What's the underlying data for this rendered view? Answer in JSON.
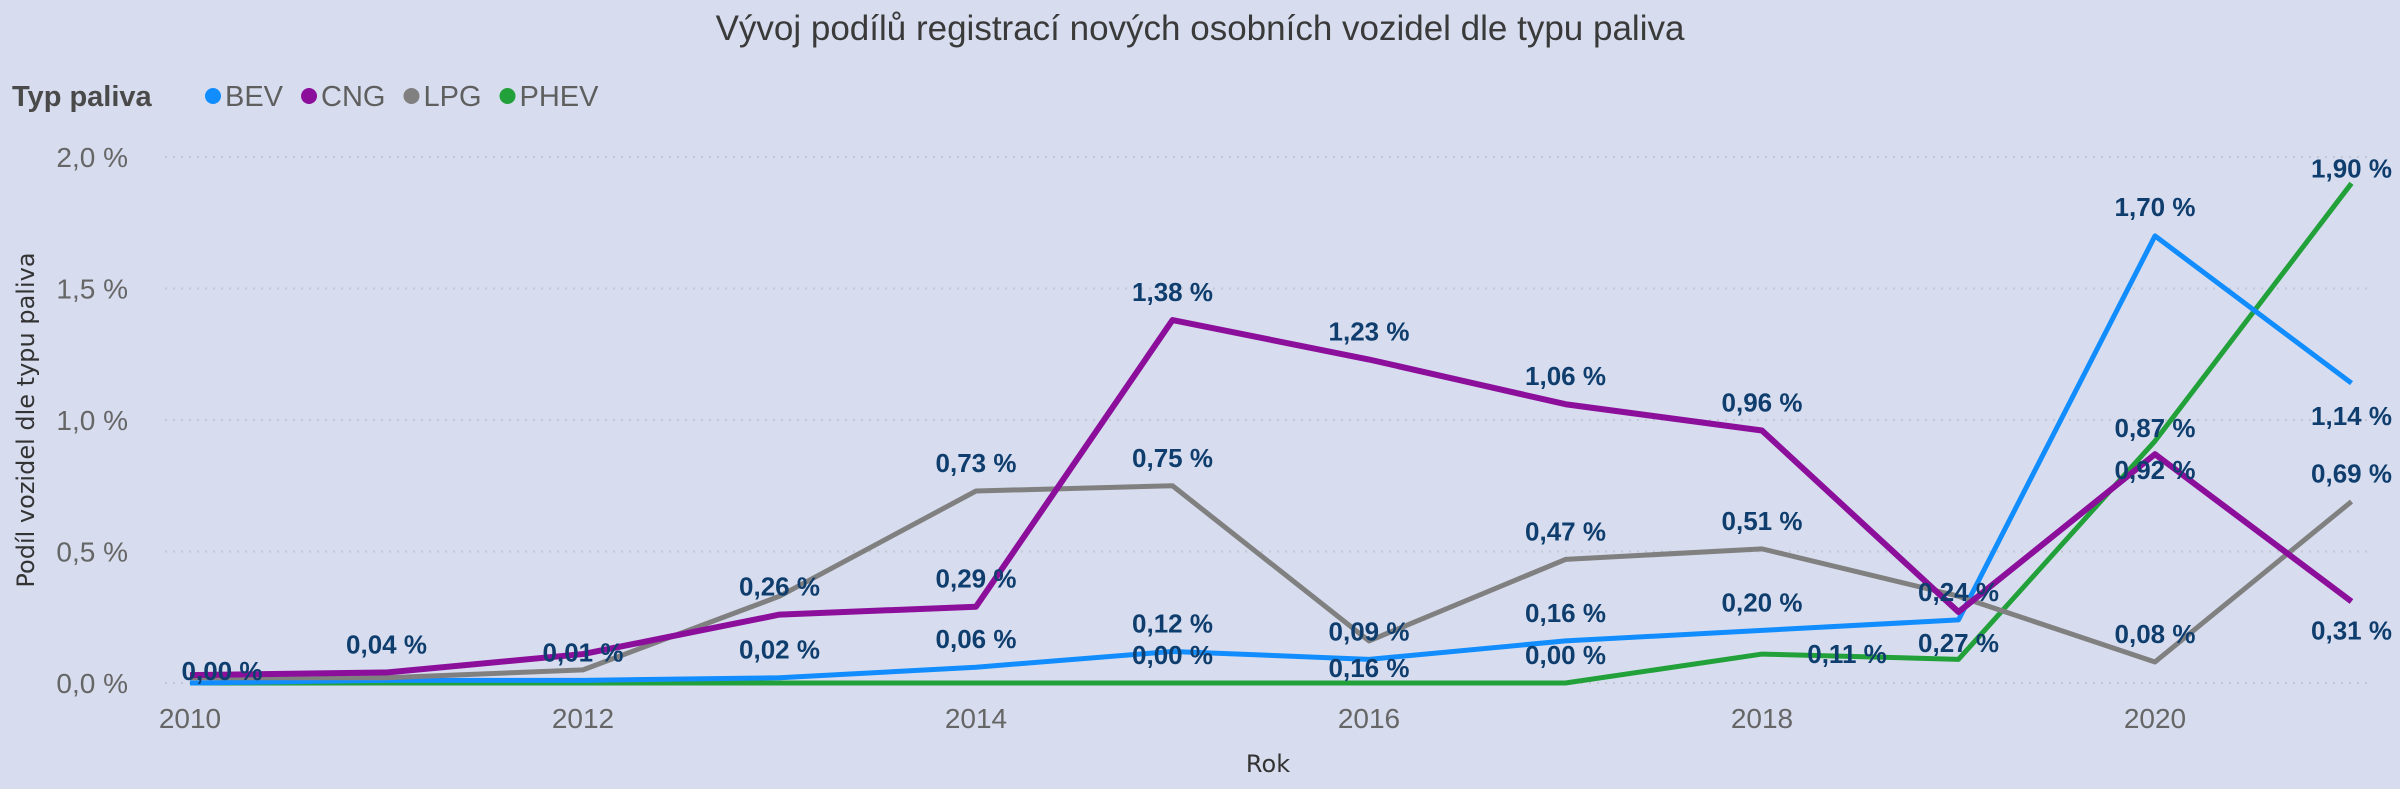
{
  "chart_data": {
    "type": "line",
    "title": "Vývoj podílů registrací nových osobních vozidel dle typu paliva",
    "legend_title": "Typ paliva",
    "legend_position": "top-left",
    "xlabel": "Rok",
    "ylabel": "Podíl vozidel dle typu paliva",
    "x": [
      2010,
      2011,
      2012,
      2013,
      2014,
      2015,
      2016,
      2017,
      2018,
      2019,
      2020,
      2021
    ],
    "x_ticks": [
      "2010",
      "2012",
      "2014",
      "2016",
      "2018",
      "2020"
    ],
    "ylim": [
      0,
      2.0
    ],
    "y_ticks": [
      "0,0 %",
      "0,5 %",
      "1,0 %",
      "1,5 %",
      "2,0 %"
    ],
    "grid": true,
    "series": [
      {
        "name": "BEV",
        "color": "#118dff",
        "values": [
          0.0,
          0.01,
          0.01,
          0.02,
          0.06,
          0.12,
          0.09,
          0.16,
          0.2,
          0.24,
          1.7,
          1.14
        ],
        "labels": [
          "0,00 %",
          null,
          "0,01 %",
          "0,02 %",
          "0,06 %",
          "0,12 %",
          "0,09 %",
          "0,16 %",
          "0,20 %",
          "0,24 %",
          "1,70 %",
          "1,14 %"
        ]
      },
      {
        "name": "CNG",
        "color": "#8c0f9c",
        "values": [
          0.03,
          0.04,
          0.11,
          0.26,
          0.29,
          1.38,
          1.23,
          1.06,
          0.96,
          0.27,
          0.87,
          0.31
        ],
        "labels": [
          null,
          "0,04 %",
          null,
          "0,26 %",
          "0,29 %",
          "1,38 %",
          "1,23 %",
          "1,06 %",
          "0,96 %",
          "0,27 %",
          "0,87 %",
          "0,31 %"
        ]
      },
      {
        "name": "LPG",
        "color": "#808080",
        "values": [
          0.02,
          0.02,
          0.05,
          0.33,
          0.73,
          0.75,
          0.16,
          0.47,
          0.51,
          0.33,
          0.08,
          0.69
        ],
        "labels": [
          null,
          null,
          null,
          null,
          "0,73 %",
          "0,75 %",
          "0,16 %",
          "0,47 %",
          "0,51 %",
          null,
          "0,08 %",
          "0,69 %"
        ]
      },
      {
        "name": "PHEV",
        "color": "#22a13a",
        "values": [
          0.0,
          0.0,
          0.0,
          0.0,
          0.0,
          0.0,
          0.0,
          0.0,
          0.11,
          0.09,
          0.92,
          1.9
        ],
        "labels": [
          null,
          null,
          null,
          null,
          null,
          "0,00 %",
          null,
          "0,00 %",
          "0,11 %",
          null,
          "0,92 %",
          "1,90 %"
        ]
      }
    ]
  }
}
